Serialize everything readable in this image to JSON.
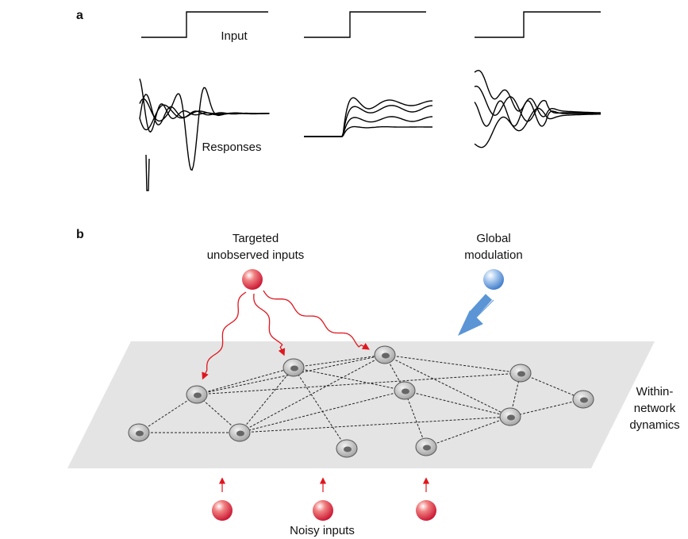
{
  "panels": {
    "a": {
      "label": "a",
      "input_label": "Input",
      "responses_label": "Responses"
    },
    "b": {
      "label": "b",
      "targeted_inputs_label": [
        "Targeted",
        "unobserved inputs"
      ],
      "global_modulation_label": [
        "Global",
        "modulation"
      ],
      "network_label": [
        "Within-",
        "network",
        "dynamics"
      ],
      "noisy_inputs_label": "Noisy inputs"
    }
  }
}
